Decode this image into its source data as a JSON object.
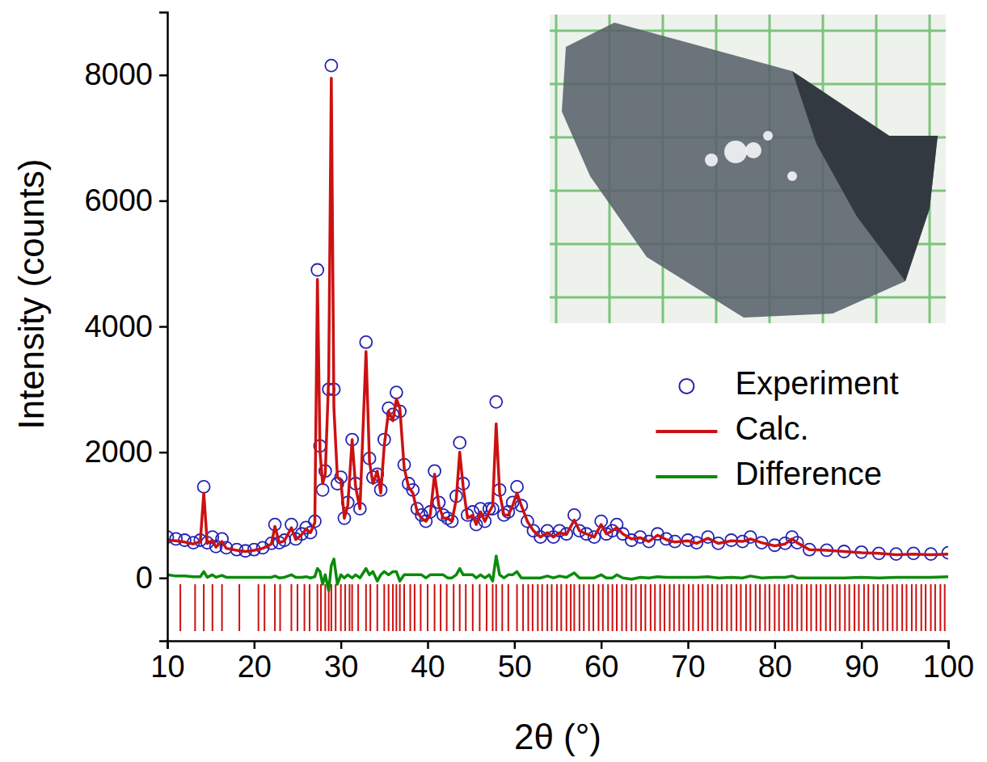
{
  "chart_data": {
    "type": "scatter",
    "x_label": "2θ (°)",
    "y_label": "Intensity (counts)",
    "xlim": [
      10,
      100
    ],
    "xticks": [
      10,
      20,
      30,
      40,
      50,
      60,
      70,
      80,
      90,
      100
    ],
    "ylim": [
      -1000,
      9000
    ],
    "yticks": [
      0,
      2000,
      4000,
      6000,
      8000
    ],
    "legend": "right",
    "x": [
      10,
      11,
      12,
      13,
      13.8,
      14.2,
      14.6,
      15.2,
      15.6,
      16.3,
      16.8,
      18,
      19,
      20,
      21,
      22,
      22.4,
      22.9,
      23.5,
      24.3,
      24.8,
      25.5,
      26.0,
      26.5,
      27.0,
      27.3,
      27.6,
      27.9,
      28.2,
      28.6,
      28.9,
      29.2,
      29.6,
      30.0,
      30.4,
      30.8,
      31.3,
      31.7,
      32.2,
      32.9,
      33.3,
      33.7,
      34.2,
      34.6,
      35.0,
      35.5,
      36.0,
      36.4,
      36.8,
      37.3,
      37.8,
      38.3,
      38.8,
      39.3,
      39.8,
      40.3,
      40.8,
      41.3,
      41.8,
      42.3,
      42.8,
      43.3,
      43.7,
      44.1,
      44.6,
      45.2,
      45.6,
      46.1,
      46.6,
      47.1,
      47.5,
      47.9,
      48.3,
      48.8,
      49.3,
      49.8,
      50.3,
      50.8,
      51.5,
      52.2,
      53,
      53.8,
      54.5,
      55.2,
      56.0,
      56.9,
      57.5,
      58.3,
      59.2,
      60.0,
      60.6,
      61.3,
      61.8,
      62.5,
      63.5,
      64.5,
      65.5,
      66.5,
      67.5,
      68.5,
      70,
      71,
      72.3,
      73.5,
      75,
      76.3,
      77.2,
      78.5,
      80,
      81.2,
      82.0,
      82.6,
      84,
      86,
      88,
      90,
      92,
      94,
      96,
      98,
      100
    ],
    "series": [
      {
        "name": "Experiment",
        "type": "scatter",
        "marker": "circle",
        "color": "#2323b4",
        "values": [
          650,
          620,
          600,
          560,
          600,
          1450,
          560,
          650,
          500,
          620,
          480,
          450,
          430,
          450,
          480,
          550,
          850,
          560,
          600,
          850,
          620,
          700,
          800,
          720,
          900,
          4900,
          2100,
          1400,
          1700,
          3000,
          8150,
          3000,
          1500,
          1600,
          950,
          1200,
          2200,
          1500,
          1100,
          3750,
          1900,
          1600,
          1650,
          1400,
          2200,
          2700,
          2600,
          2950,
          2650,
          1800,
          1500,
          1400,
          1100,
          1000,
          900,
          1050,
          1700,
          1200,
          1000,
          950,
          900,
          1300,
          2150,
          1500,
          1000,
          1050,
          850,
          1100,
          900,
          1100,
          1100,
          2800,
          1400,
          1000,
          1050,
          1200,
          1450,
          1150,
          900,
          750,
          650,
          750,
          650,
          750,
          700,
          1000,
          750,
          700,
          650,
          900,
          700,
          750,
          850,
          700,
          600,
          650,
          580,
          700,
          620,
          580,
          600,
          560,
          650,
          550,
          600,
          580,
          650,
          560,
          520,
          550,
          650,
          560,
          450,
          440,
          420,
          410,
          390,
          380,
          390,
          380,
          400
        ]
      },
      {
        "name": "Calc.",
        "type": "line",
        "line_style": "solid",
        "color": "#cc1111",
        "values": [
          600,
          590,
          570,
          540,
          580,
          1350,
          550,
          600,
          490,
          580,
          470,
          440,
          420,
          440,
          470,
          540,
          820,
          560,
          590,
          800,
          610,
          690,
          780,
          720,
          880,
          4750,
          2000,
          1500,
          1650,
          3200,
          7950,
          2700,
          1600,
          1550,
          950,
          1150,
          2200,
          1450,
          1100,
          3600,
          1850,
          1500,
          1700,
          1350,
          2100,
          2650,
          2500,
          2850,
          2700,
          1750,
          1450,
          1350,
          1050,
          950,
          900,
          1000,
          1650,
          1150,
          950,
          950,
          900,
          1250,
          2000,
          1450,
          950,
          1000,
          850,
          1050,
          900,
          1050,
          1150,
          2450,
          1350,
          1000,
          1000,
          1150,
          1350,
          1150,
          900,
          750,
          650,
          720,
          650,
          720,
          690,
          920,
          750,
          700,
          650,
          850,
          700,
          750,
          800,
          700,
          620,
          640,
          580,
          680,
          610,
          570,
          590,
          550,
          630,
          550,
          590,
          580,
          620,
          560,
          510,
          540,
          620,
          560,
          450,
          440,
          420,
          400,
          390,
          370,
          380,
          370,
          380
        ]
      },
      {
        "name": "Difference",
        "type": "line",
        "line_style": "solid",
        "color": "#0a8c0a",
        "values": [
          50,
          30,
          30,
          20,
          20,
          100,
          10,
          50,
          10,
          40,
          10,
          10,
          10,
          10,
          10,
          10,
          30,
          0,
          10,
          50,
          10,
          10,
          20,
          0,
          20,
          150,
          100,
          -100,
          50,
          -200,
          200,
          300,
          -100,
          50,
          0,
          50,
          0,
          50,
          0,
          150,
          50,
          100,
          -50,
          50,
          100,
          50,
          100,
          100,
          -50,
          50,
          50,
          50,
          50,
          50,
          0,
          50,
          50,
          50,
          50,
          0,
          0,
          50,
          150,
          50,
          50,
          50,
          0,
          50,
          0,
          50,
          -50,
          350,
          50,
          0,
          50,
          50,
          100,
          0,
          0,
          0,
          0,
          30,
          0,
          30,
          10,
          80,
          0,
          0,
          0,
          50,
          0,
          0,
          50,
          0,
          -20,
          10,
          0,
          20,
          10,
          10,
          10,
          10,
          20,
          0,
          10,
          0,
          30,
          0,
          10,
          10,
          30,
          0,
          0,
          0,
          0,
          10,
          0,
          10,
          10,
          10,
          20
        ]
      }
    ],
    "reflections": {
      "color": "#cc1111",
      "x": [
        11.5,
        13.2,
        14.2,
        15.2,
        16.3,
        18.3,
        20.5,
        21.2,
        22.4,
        23.0,
        24.3,
        25.0,
        25.8,
        26.4,
        27.3,
        27.7,
        28.2,
        28.6,
        28.9,
        29.4,
        30.0,
        30.5,
        31.0,
        31.3,
        32.0,
        32.9,
        33.4,
        34.2,
        35.0,
        35.5,
        36.0,
        36.4,
        36.8,
        37.3,
        38.0,
        38.5,
        39.2,
        40.0,
        40.8,
        41.5,
        42.2,
        43.0,
        43.7,
        44.4,
        45.2,
        46.0,
        46.8,
        47.5,
        47.9,
        48.6,
        49.3,
        50.3,
        51.0,
        51.6,
        52.1,
        52.7,
        53.2,
        53.8,
        54.3,
        54.9,
        55.4,
        56.0,
        56.5,
        56.9,
        57.5,
        58.0,
        58.6,
        59.1,
        59.7,
        60.2,
        60.8,
        61.3,
        61.8,
        62.4,
        62.9,
        63.5,
        64.0,
        64.6,
        65.1,
        65.7,
        66.2,
        66.8,
        67.3,
        67.9,
        68.4,
        69.0,
        69.5,
        70.1,
        70.6,
        71.2,
        71.7,
        72.3,
        72.8,
        73.4,
        73.9,
        74.5,
        75.0,
        75.6,
        76.1,
        76.7,
        77.2,
        77.8,
        78.3,
        78.9,
        79.4,
        80.0,
        80.5,
        81.1,
        81.6,
        82.0,
        82.6,
        83.1,
        83.7,
        84.2,
        84.8,
        85.3,
        85.9,
        86.4,
        87.0,
        87.5,
        88.1,
        88.6,
        89.2,
        89.7,
        90.3,
        90.8,
        91.4,
        91.9,
        92.5,
        93.0,
        93.6,
        94.1,
        94.7,
        95.2,
        95.8,
        96.3,
        96.9,
        97.4,
        98.0,
        98.5,
        99.1,
        99.6
      ]
    }
  }
}
